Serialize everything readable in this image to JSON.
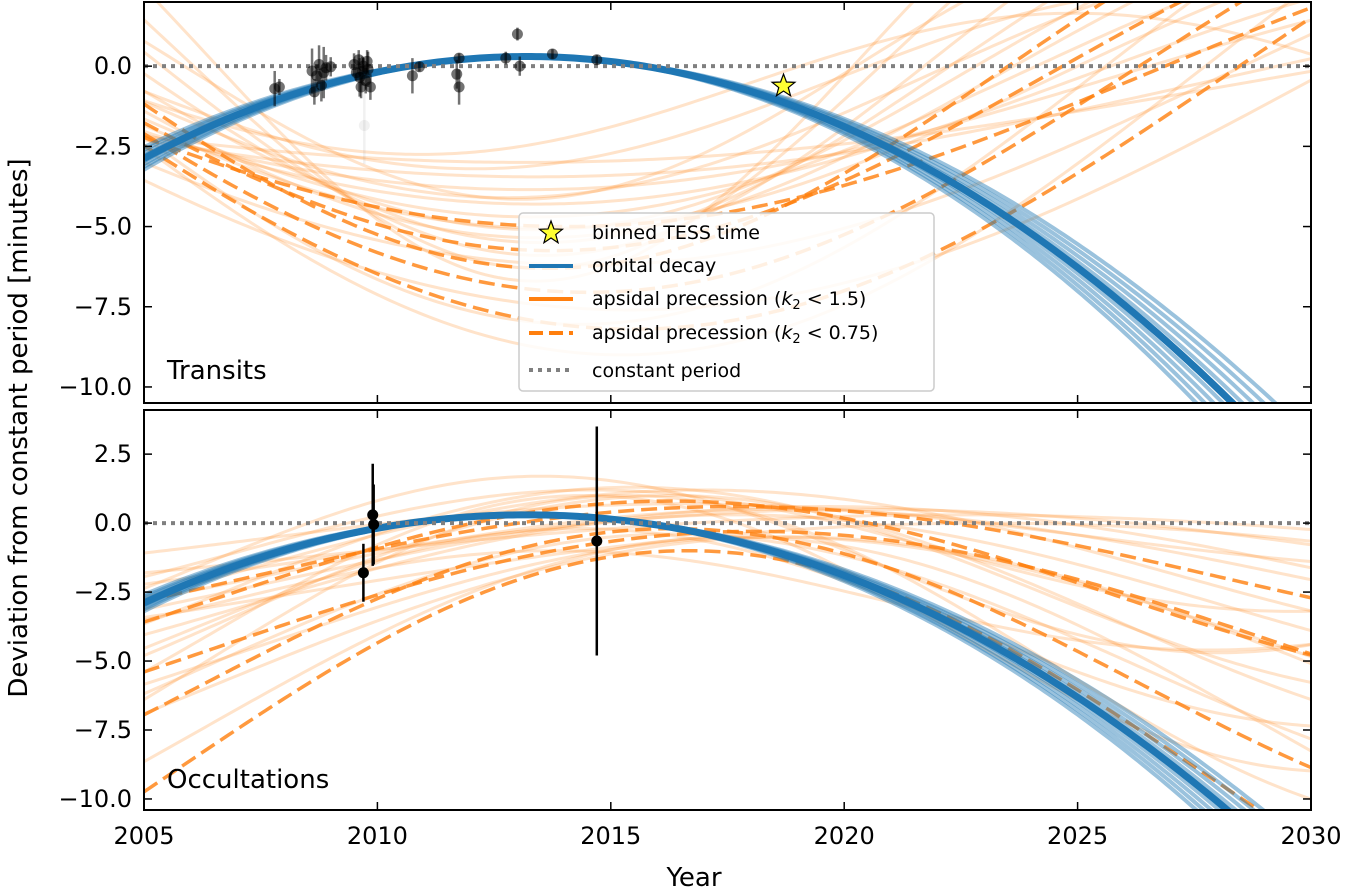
{
  "chart_data": {
    "type": "line",
    "shared_x": {
      "label": "Year",
      "range": [
        2005,
        2030
      ],
      "ticks": [
        2005,
        2010,
        2015,
        2020,
        2025,
        2030
      ],
      "tick_labels": [
        "2005",
        "2010",
        "2015",
        "2020",
        "2025",
        "2030"
      ]
    },
    "ylabel": "Deviation from constant period [minutes]",
    "colors": {
      "orbital_decay": "#1f77b4",
      "apsidal": "#ff7f0e",
      "constant": "#808080",
      "star": "#ffff33",
      "points": "#000000"
    },
    "legend": {
      "position": "lower-center of top panel",
      "entries": [
        {
          "label": "binned TESS time",
          "style": "star-marker"
        },
        {
          "label": "orbital decay",
          "style": "solid-blue"
        },
        {
          "label_prefix": "apsidal precession (",
          "label_var": "k",
          "label_sub": "2",
          "label_rel": " < 1.5)",
          "style": "solid-orange"
        },
        {
          "label_prefix": "apsidal precession (",
          "label_var": "k",
          "label_sub": "2",
          "label_rel": " < 0.75)",
          "style": "dashed-orange"
        },
        {
          "label": "constant period",
          "style": "dotted-gray"
        }
      ]
    },
    "panels": [
      {
        "name": "Transits",
        "ylim": [
          -10.5,
          2.0
        ],
        "yticks": [
          0.0,
          -2.5,
          -5.0,
          -7.5,
          -10.0
        ],
        "ytick_labels": [
          "0.0",
          "−2.5",
          "−5.0",
          "−7.5",
          "−10.0"
        ],
        "series": [
          {
            "name": "orbital decay",
            "model": "quadratic",
            "ref_year": 2013.2,
            "peak": 0.3,
            "curvature_range": [
              0.042,
              0.0525
            ],
            "n_curves": 9
          },
          {
            "name": "apsidal precession (k2 < 1.5)",
            "model": "precession",
            "curves": [
              {
                "A": -5.0,
                "P": 37,
                "phi": 0.9,
                "c": -0.1
              },
              {
                "A": -4.5,
                "P": 42,
                "phi": 1.0,
                "c": -0.2
              },
              {
                "A": -5.5,
                "P": 35,
                "phi": 0.85,
                "c": 0.0
              },
              {
                "A": -4.0,
                "P": 47,
                "phi": 1.05,
                "c": -0.3
              },
              {
                "A": -3.5,
                "P": 50,
                "phi": 1.1,
                "c": -0.35
              },
              {
                "A": -6.0,
                "P": 33,
                "phi": 0.8,
                "c": 0.1
              },
              {
                "A": -3.0,
                "P": 58,
                "phi": 1.15,
                "c": -0.45
              },
              {
                "A": -6.5,
                "P": 30,
                "phi": 0.75,
                "c": 0.2
              },
              {
                "A": -2.5,
                "P": 62,
                "phi": 1.2,
                "c": -0.5
              },
              {
                "A": -7.0,
                "P": 28,
                "phi": 0.7,
                "c": 0.3
              },
              {
                "A": -5.2,
                "P": 40,
                "phi": 0.95,
                "c": -0.15
              },
              {
                "A": -4.8,
                "P": 44,
                "phi": 0.98,
                "c": -0.25
              },
              {
                "A": -3.8,
                "P": 36,
                "phi": 1.0,
                "c": -0.3
              },
              {
                "A": -2.8,
                "P": 31,
                "phi": 1.05,
                "c": -0.4
              },
              {
                "A": -8.0,
                "P": 45,
                "phi": 0.9,
                "c": -0.05
              },
              {
                "A": -9.0,
                "P": 50,
                "phi": 0.85,
                "c": 0.0
              },
              {
                "A": -2.2,
                "P": 28,
                "phi": 1.25,
                "c": -0.55
              },
              {
                "A": -6.0,
                "P": 55,
                "phi": 1.0,
                "c": -0.2
              },
              {
                "A": -4.2,
                "P": 29,
                "phi": 0.8,
                "c": 0.05
              },
              {
                "A": -7.5,
                "P": 60,
                "phi": 0.95,
                "c": -0.1
              }
            ]
          },
          {
            "name": "apsidal precession (k2 < 0.75)",
            "model": "precession",
            "curves": [
              {
                "A": -6.2,
                "P": 39,
                "phi": 0.9,
                "c": -0.1
              },
              {
                "A": -5.6,
                "P": 43,
                "phi": 0.95,
                "c": -0.15
              },
              {
                "A": -7.0,
                "P": 47,
                "phi": 0.9,
                "c": -0.05
              },
              {
                "A": -4.8,
                "P": 50,
                "phi": 1.0,
                "c": -0.2
              },
              {
                "A": -8.2,
                "P": 52,
                "phi": 0.85,
                "c": 0.0
              }
            ]
          },
          {
            "name": "constant period",
            "value": 0.0
          }
        ],
        "points": [
          {
            "x": 2007.8,
            "y": -0.7,
            "err": 0.55
          },
          {
            "x": 2007.9,
            "y": -0.65,
            "err": 0.25
          },
          {
            "x": 2008.6,
            "y": -0.15,
            "err": 0.7
          },
          {
            "x": 2008.65,
            "y": -0.8,
            "err": 0.4
          },
          {
            "x": 2008.7,
            "y": -0.3,
            "err": 0.35
          },
          {
            "x": 2008.75,
            "y": 0.05,
            "err": 0.6
          },
          {
            "x": 2008.8,
            "y": -0.6,
            "err": 0.5
          },
          {
            "x": 2008.85,
            "y": -0.2,
            "err": 0.8
          },
          {
            "x": 2008.9,
            "y": -0.05,
            "err": 0.4
          },
          {
            "x": 2009.0,
            "y": -0.02,
            "err": 0.3
          },
          {
            "x": 2009.5,
            "y": 0.05,
            "err": 0.35
          },
          {
            "x": 2009.55,
            "y": -0.2,
            "err": 0.25
          },
          {
            "x": 2009.6,
            "y": 0.2,
            "err": 0.3
          },
          {
            "x": 2009.62,
            "y": -0.35,
            "err": 0.6
          },
          {
            "x": 2009.65,
            "y": -0.65,
            "err": 0.35
          },
          {
            "x": 2009.68,
            "y": -0.15,
            "err": 0.45
          },
          {
            "x": 2009.7,
            "y": 0.0,
            "err": 0.25
          },
          {
            "x": 2009.72,
            "y": -1.85,
            "err": 1.2,
            "faint": true
          },
          {
            "x": 2009.75,
            "y": -0.45,
            "err": 0.4
          },
          {
            "x": 2009.78,
            "y": 0.15,
            "err": 0.35
          },
          {
            "x": 2009.8,
            "y": -0.1,
            "err": 0.55
          },
          {
            "x": 2009.85,
            "y": -0.65,
            "err": 0.4
          },
          {
            "x": 2010.75,
            "y": -0.3,
            "err": 0.55
          },
          {
            "x": 2010.9,
            "y": -0.02,
            "err": 0.15
          },
          {
            "x": 2011.75,
            "y": 0.25,
            "err": 0.15
          },
          {
            "x": 2011.7,
            "y": -0.25,
            "err": 0.45
          },
          {
            "x": 2011.75,
            "y": -0.65,
            "err": 0.55
          },
          {
            "x": 2012.75,
            "y": 0.25,
            "err": 0.2
          },
          {
            "x": 2013.0,
            "y": 1.0,
            "err": 0.2
          },
          {
            "x": 2013.05,
            "y": 0.0,
            "err": 0.3
          },
          {
            "x": 2013.75,
            "y": 0.38,
            "err": 0.15
          },
          {
            "x": 2014.7,
            "y": 0.2,
            "err": 0.15
          }
        ],
        "tess_point": {
          "x": 2018.7,
          "y": -0.62
        }
      },
      {
        "name": "Occultations",
        "ylim": [
          -10.4,
          4.1
        ],
        "yticks": [
          2.5,
          0.0,
          -2.5,
          -5.0,
          -7.5,
          -10.0
        ],
        "ytick_labels": [
          "2.5",
          "0.0",
          "−2.5",
          "−5.0",
          "−7.5",
          "−10.0"
        ],
        "series": [
          {
            "name": "orbital decay",
            "model": "quadratic",
            "ref_year": 2013.2,
            "peak": 0.3,
            "curvature_range": [
              0.043,
              0.052
            ],
            "n_curves": 9
          },
          {
            "name": "apsidal precession (k2 < 1.5)",
            "model": "precession",
            "curves": [
              {
                "A": 3.0,
                "P": 40,
                "phi": 0.4,
                "c": -1.8
              },
              {
                "A": 2.5,
                "P": 45,
                "phi": 0.3,
                "c": -2.0
              },
              {
                "A": 3.8,
                "P": 35,
                "phi": 0.5,
                "c": -2.5
              },
              {
                "A": 2.0,
                "P": 50,
                "phi": 0.2,
                "c": -1.5
              },
              {
                "A": 4.5,
                "P": 38,
                "phi": 0.45,
                "c": -3.5
              },
              {
                "A": 1.5,
                "P": 55,
                "phi": 0.1,
                "c": -1.2
              },
              {
                "A": 5.0,
                "P": 32,
                "phi": 0.6,
                "c": -4.0
              },
              {
                "A": 3.3,
                "P": 42,
                "phi": 0.35,
                "c": -3.0
              },
              {
                "A": 2.8,
                "P": 48,
                "phi": 0.25,
                "c": -2.2
              },
              {
                "A": 6.0,
                "P": 36,
                "phi": 0.55,
                "c": -5.0
              },
              {
                "A": 2.2,
                "P": 30,
                "phi": 0.5,
                "c": -1.0
              },
              {
                "A": 4.0,
                "P": 44,
                "phi": 0.3,
                "c": -4.5
              },
              {
                "A": 1.8,
                "P": 28,
                "phi": 0.6,
                "c": -2.8
              },
              {
                "A": 5.5,
                "P": 50,
                "phi": 0.4,
                "c": -6.0
              },
              {
                "A": 3.6,
                "P": 33,
                "phi": 0.65,
                "c": -3.8
              },
              {
                "A": 2.6,
                "P": 60,
                "phi": 0.15,
                "c": -2.6
              },
              {
                "A": 4.8,
                "P": 40,
                "phi": 0.5,
                "c": -5.2
              },
              {
                "A": 7.0,
                "P": 46,
                "phi": 0.45,
                "c": -7.5
              },
              {
                "A": 1.2,
                "P": 35,
                "phi": 0.3,
                "c": -0.5
              },
              {
                "A": 3.2,
                "P": 29,
                "phi": 0.7,
                "c": -1.5
              }
            ]
          },
          {
            "name": "apsidal precession (k2 < 0.75)",
            "model": "precession",
            "curves": [
              {
                "A": 2.6,
                "P": 42,
                "phi": 0.35,
                "c": -2.0
              },
              {
                "A": 3.4,
                "P": 38,
                "phi": 0.45,
                "c": -2.6
              },
              {
                "A": 4.2,
                "P": 46,
                "phi": 0.4,
                "c": -4.5
              },
              {
                "A": 5.6,
                "P": 40,
                "phi": 0.5,
                "c": -5.8
              },
              {
                "A": 8.0,
                "P": 44,
                "phi": 0.55,
                "c": -9.0
              }
            ]
          },
          {
            "name": "constant period",
            "value": 0.0
          }
        ],
        "points": [
          {
            "x": 2009.7,
            "y": -1.8,
            "err": 1.05
          },
          {
            "x": 2009.9,
            "y": 0.3,
            "err": 1.85
          },
          {
            "x": 2009.92,
            "y": -0.05,
            "err": 1.45
          },
          {
            "x": 2014.7,
            "y": -0.65,
            "err": 4.15
          }
        ]
      }
    ]
  }
}
